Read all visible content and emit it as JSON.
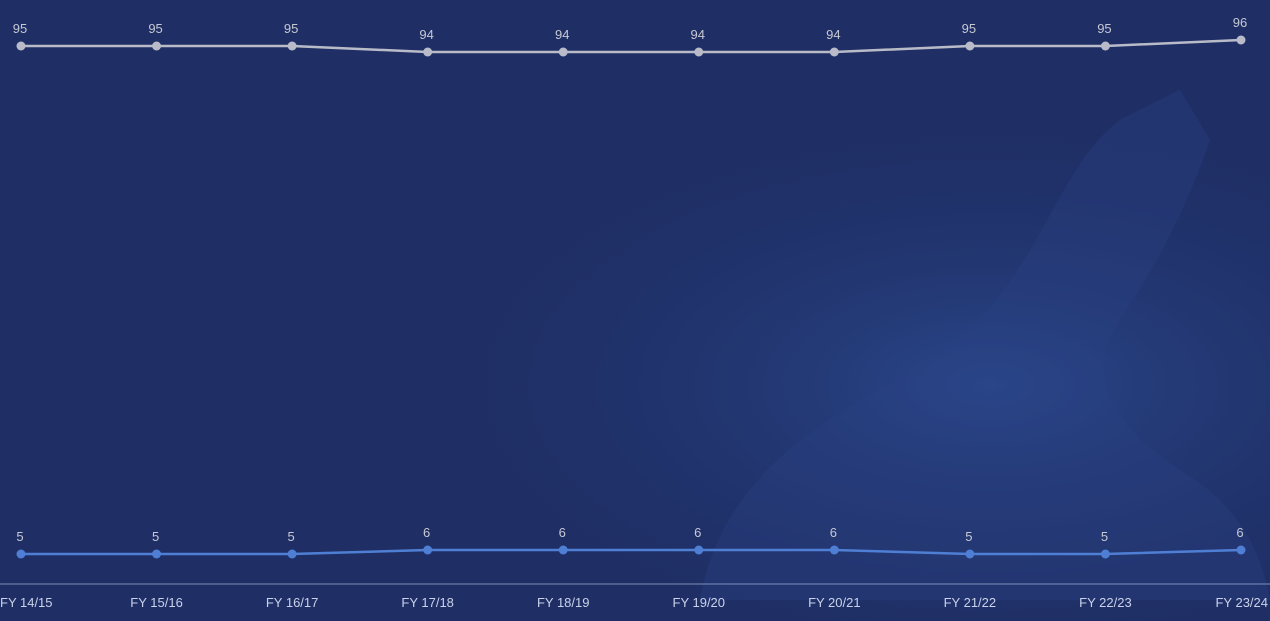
{
  "chart_data": {
    "type": "line",
    "categories": [
      "FY 14/15",
      "FY 15/16",
      "FY 16/17",
      "FY 17/18",
      "FY 18/19",
      "FY 19/20",
      "FY 20/21",
      "FY 21/22",
      "FY 22/23",
      "FY 23/24"
    ],
    "series": [
      {
        "values": [
          95,
          95,
          95,
          94,
          94,
          94,
          94,
          95,
          95,
          96
        ],
        "color": "#b9bcc8"
      },
      {
        "values": [
          5,
          5,
          5,
          6,
          6,
          6,
          6,
          5,
          5,
          6
        ],
        "color": "#4f7fd4"
      }
    ],
    "title": "",
    "xlabel": "",
    "ylabel": "",
    "grid": false,
    "legend": "none",
    "background_color": "#1f2f66"
  }
}
